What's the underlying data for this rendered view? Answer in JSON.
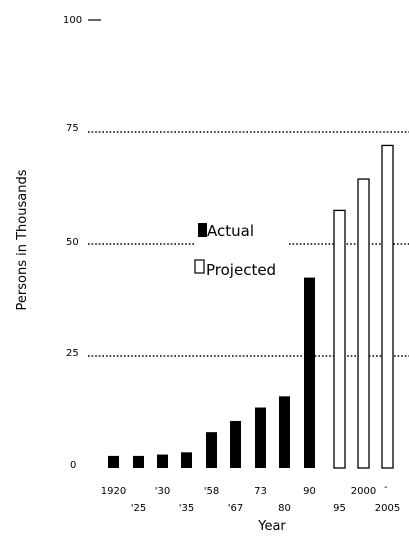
{
  "chart_data": {
    "type": "bar",
    "categories": [
      "1920",
      "'25",
      "'30",
      "'35",
      "'58",
      "'67",
      "73",
      "80",
      "90",
      "95",
      "2000",
      "2005"
    ],
    "series": [
      {
        "name": "Actual",
        "values": [
          2.7,
          2.7,
          3.0,
          3.5,
          8.0,
          10.5,
          13.5,
          16.0,
          42.5,
          null,
          null,
          null
        ]
      },
      {
        "name": "Projected",
        "values": [
          null,
          null,
          null,
          null,
          null,
          null,
          null,
          null,
          null,
          57.5,
          64.5,
          72.0
        ]
      }
    ],
    "xlabel": "Year",
    "ylabel": "Persons in Thousands",
    "ylim": [
      0,
      100
    ],
    "yticks": [
      "0",
      "25",
      "50",
      "75",
      "100"
    ],
    "gridlines": [
      25,
      50,
      75
    ],
    "legend": {
      "actual": "Actual",
      "projected": "Projected",
      "placement": "center-left"
    },
    "colors": {
      "actual": "#000000",
      "projected": "#ffffff",
      "outline": "#000000"
    },
    "extra_mark": "-"
  }
}
